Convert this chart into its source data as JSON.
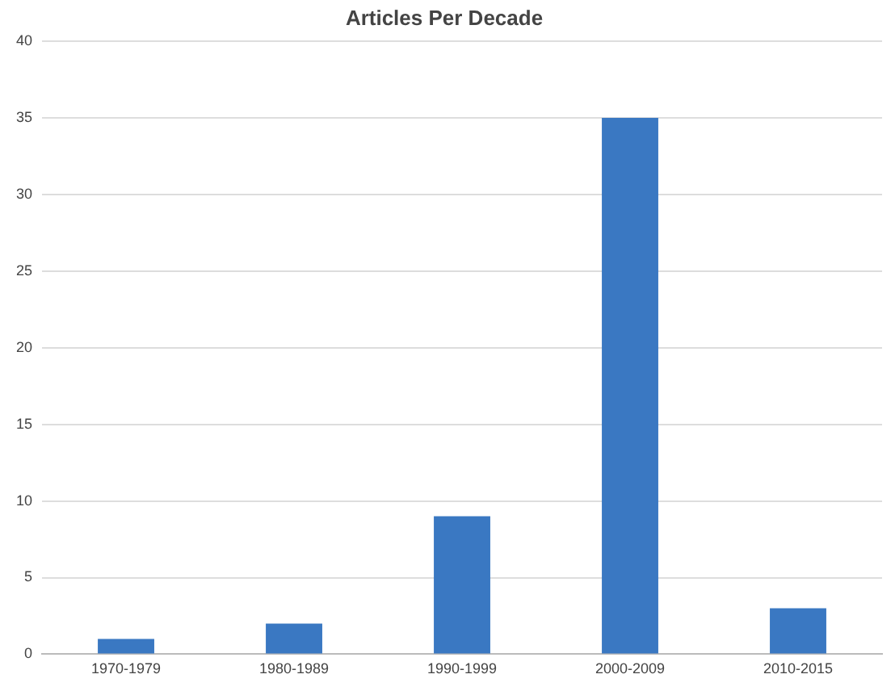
{
  "chart_data": {
    "type": "bar",
    "title": "Articles Per Decade",
    "categories": [
      "1970-1979",
      "1980-1989",
      "1990-1999",
      "2000-2009",
      "2010-2015"
    ],
    "values": [
      1,
      2,
      9,
      35,
      3
    ],
    "color": "#3a78c2",
    "ylim": [
      0,
      40
    ],
    "yticks": [
      0,
      5,
      10,
      15,
      20,
      25,
      30,
      35,
      40
    ],
    "grid": "y"
  }
}
